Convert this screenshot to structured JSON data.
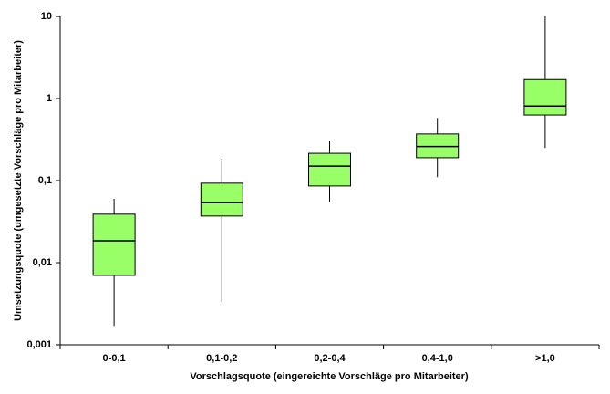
{
  "chart_data": {
    "type": "box",
    "x_label": "Vorschlagsquote (eingereichte Vorschläge pro Mitarbeiter)",
    "y_label": "Umsetzungsquote (umgesetzte Vorschläge pro Mitarbeiter)",
    "categories": [
      "0-0,1",
      "0,1-0,2",
      "0,2-0,4",
      "0,4-1,0",
      ">1,0"
    ],
    "whisker_low": [
      0.0017,
      0.0033,
      0.055,
      0.11,
      0.25
    ],
    "q1": [
      0.007,
      0.037,
      0.086,
      0.19,
      0.63
    ],
    "median": [
      0.0185,
      0.054,
      0.15,
      0.26,
      0.81
    ],
    "q3": [
      0.039,
      0.093,
      0.215,
      0.37,
      1.7
    ],
    "whisker_high": [
      0.06,
      0.185,
      0.3,
      0.58,
      10
    ],
    "color": "#99ff66",
    "y_scale": "log",
    "ylim": [
      0.001,
      10
    ],
    "yticks": [
      {
        "value": 0.001,
        "label": "0,001"
      },
      {
        "value": 0.01,
        "label": "0,01"
      },
      {
        "value": 0.1,
        "label": "0,1"
      },
      1,
      10
    ]
  }
}
